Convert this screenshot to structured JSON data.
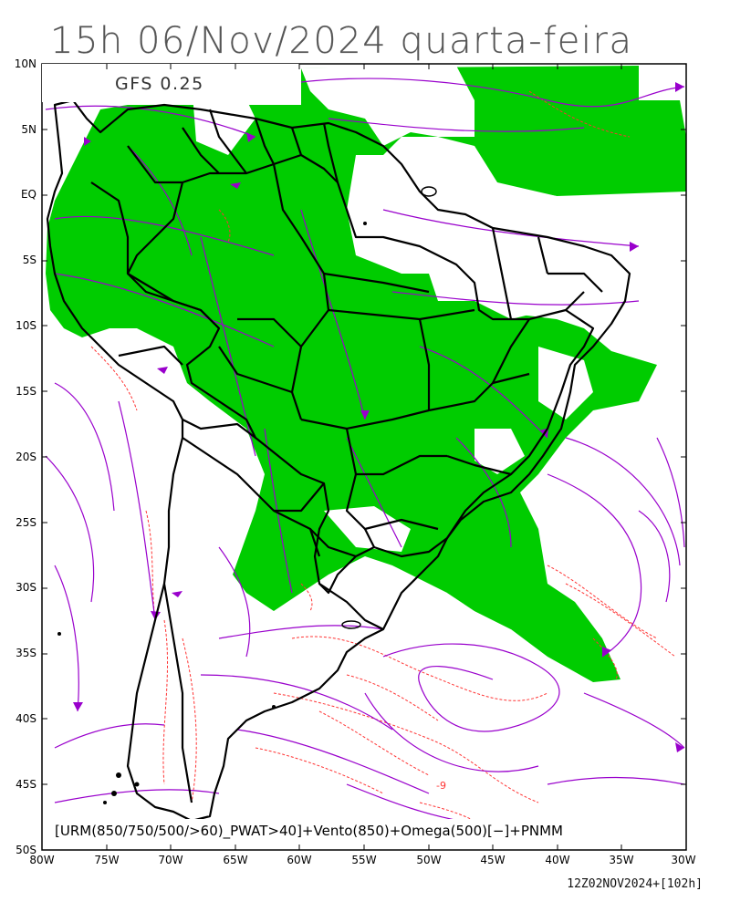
{
  "title": "15h 06/Nov/2024 quarta-feira",
  "model_label": "GFS 0.25",
  "caption": "[URM(850/750/500/>60)_PWAT>40]+Vento(850)+Omega(500)[−]+PNMM",
  "run_info": "12Z02NOV2024+[102h]",
  "lat_ticks": [
    "10N",
    "5N",
    "EQ",
    "5S",
    "10S",
    "15S",
    "20S",
    "25S",
    "30S",
    "35S",
    "40S",
    "45S",
    "50S"
  ],
  "lon_ticks": [
    "80W",
    "75W",
    "70W",
    "65W",
    "60W",
    "55W",
    "50W",
    "45W",
    "40W",
    "35W",
    "30W"
  ],
  "contour_label": "-9",
  "colors": {
    "humidity_fill": "#00cc00",
    "streamlines": "#9900cc",
    "omega_contours": "#ff3333",
    "borders": "#000000"
  }
}
